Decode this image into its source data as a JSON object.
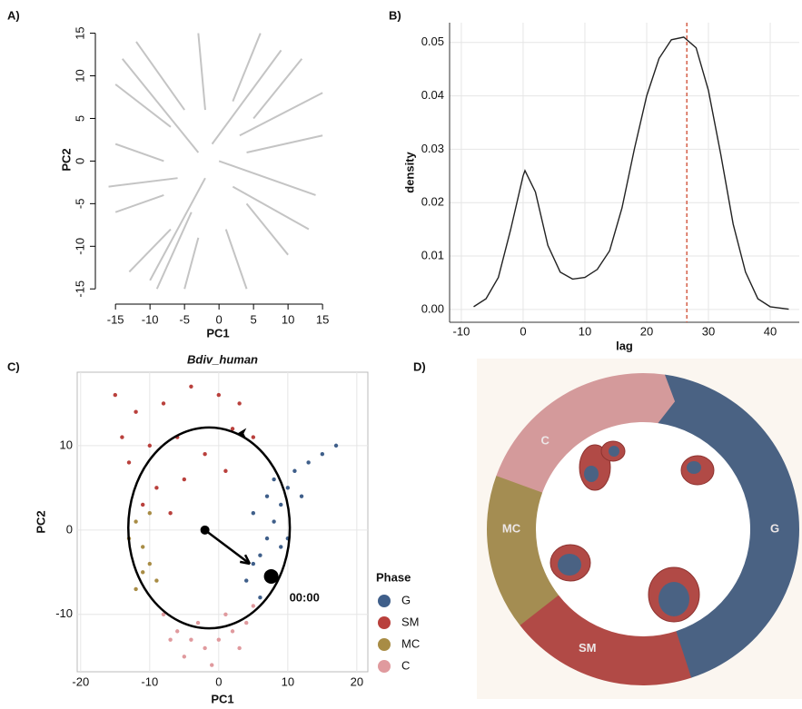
{
  "chart_data": [
    {
      "type": "segments",
      "panel_label": "A)",
      "x_label": "PC1",
      "y_label": "PC2",
      "color": "#c4c4c4",
      "x0": [
        4,
        5,
        2,
        -2,
        -5,
        -7,
        -8,
        -8,
        -7,
        -3,
        1,
        4,
        0,
        -1,
        -3,
        -2,
        2,
        -6,
        3,
        -4
      ],
      "y0": [
        1,
        5,
        7,
        6,
        6,
        4,
        0,
        -4,
        -8,
        -9,
        -8,
        -5,
        0,
        2,
        1,
        -2,
        -3,
        -2,
        3,
        -6
      ],
      "x1": [
        15,
        12,
        6,
        -3,
        -12,
        -15,
        -15,
        -15,
        -13,
        -5,
        4,
        10,
        14,
        9,
        -14,
        -10,
        13,
        -16,
        15,
        -9
      ],
      "y1": [
        3,
        12,
        15,
        15,
        14,
        9,
        2,
        -6,
        -13,
        -15,
        -15,
        -11,
        -4,
        13,
        12,
        -14,
        -8,
        -3,
        8,
        -15
      ],
      "xlim": [
        -16.6,
        16.3
      ],
      "ylim": [
        -15.4,
        15.7
      ],
      "xticks": [
        -15,
        -10,
        -5,
        0,
        5,
        10,
        15
      ],
      "yticks": [
        -15,
        -10,
        -5,
        0,
        5,
        10,
        15
      ]
    },
    {
      "type": "line",
      "panel_label": "B)",
      "x_label": "lag",
      "y_label": "density",
      "color": "#222222",
      "x": [
        -8,
        -6,
        -4,
        -2,
        0,
        0.3,
        2,
        4,
        6,
        8,
        10,
        12,
        14,
        16,
        18,
        20,
        22,
        24,
        26,
        28,
        30,
        32,
        34,
        36,
        38,
        40,
        43
      ],
      "values": [
        0.0005,
        0.002,
        0.006,
        0.015,
        0.025,
        0.026,
        0.022,
        0.012,
        0.007,
        0.0057,
        0.006,
        0.0075,
        0.011,
        0.019,
        0.03,
        0.04,
        0.047,
        0.0505,
        0.051,
        0.049,
        0.041,
        0.029,
        0.016,
        0.007,
        0.002,
        0.0005,
        5e-05
      ],
      "vline": 26.5,
      "vline_color": "#d2553c",
      "xlim": [
        -11.9,
        44.7
      ],
      "ylim": [
        -0.0024,
        0.0537
      ],
      "xticks": [
        -10,
        0,
        10,
        20,
        30,
        40
      ],
      "yticks": [
        {
          "value": 0,
          "label": "0.00"
        },
        {
          "value": 0.01,
          "label": "0.01"
        },
        {
          "value": 0.02,
          "label": "0.02"
        },
        {
          "value": 0.03,
          "label": "0.03"
        },
        {
          "value": 0.04,
          "label": "0.04"
        },
        {
          "value": 0.05,
          "label": "0.05"
        }
      ],
      "grid": true
    },
    {
      "type": "scatter",
      "panel_label": "C)",
      "title": "Bdiv_human",
      "x_label": "PC1",
      "y_label": "PC2",
      "legend_title": "Phase",
      "series": [
        {
          "name": "G",
          "color": "#3f5f8a",
          "x": [
            5,
            7,
            9,
            10,
            6,
            8,
            11,
            13,
            15,
            7,
            9,
            4,
            6,
            12,
            17,
            8,
            10,
            5
          ],
          "values": [
            2,
            -1,
            3,
            5,
            -3,
            1,
            7,
            8,
            9,
            4,
            -2,
            -6,
            -8,
            4,
            10,
            6,
            -1,
            -4
          ]
        },
        {
          "name": "SM",
          "color": "#b9403c",
          "x": [
            -15,
            -12,
            -8,
            -4,
            0,
            3,
            -10,
            -6,
            -2,
            2,
            -13,
            -9,
            -11,
            -5,
            1,
            5,
            -14,
            -7
          ],
          "values": [
            16,
            14,
            15,
            17,
            16,
            15,
            10,
            11,
            9,
            12,
            8,
            5,
            3,
            6,
            7,
            11,
            11,
            2
          ]
        },
        {
          "name": "MC",
          "color": "#a88c45",
          "x": [
            -12,
            -11,
            -10,
            -13,
            -9,
            -12,
            -10,
            -11
          ],
          "values": [
            1,
            -2,
            -4,
            -1,
            -6,
            -7,
            2,
            -5
          ]
        },
        {
          "name": "C",
          "color": "#e09a9e",
          "x": [
            -8,
            -6,
            -4,
            -2,
            0,
            2,
            4,
            -5,
            -1,
            3,
            -7,
            1,
            5,
            -3
          ],
          "values": [
            -10,
            -12,
            -13,
            -14,
            -13,
            -12,
            -11,
            -15,
            -16,
            -14,
            -13,
            -10,
            -9,
            -11
          ]
        }
      ],
      "ellipse": {
        "cx": -1.4,
        "cy": 0.25,
        "rx": 11.7,
        "ry": 11.9
      },
      "arrow": {
        "x": [
          -2,
          4.5
        ],
        "y": [
          0,
          -4
        ]
      },
      "marker": {
        "x": 7.6,
        "y": -5.5
      },
      "annotation": "00:00",
      "xlim": [
        -20.5,
        21.6
      ],
      "ylim": [
        -16.8,
        18.7
      ],
      "xticks": [
        -20,
        -10,
        0,
        10,
        20
      ],
      "yticks": [
        -10,
        0,
        10
      ],
      "grid": true
    }
  ],
  "diagram": {
    "panel_label": "D)",
    "phases": [
      {
        "label": "G",
        "color": "#4a6283"
      },
      {
        "label": "SM",
        "color": "#b14a46"
      },
      {
        "label": "MC",
        "color": "#a48d52"
      },
      {
        "label": "C",
        "color": "#d49a9b"
      }
    ]
  }
}
